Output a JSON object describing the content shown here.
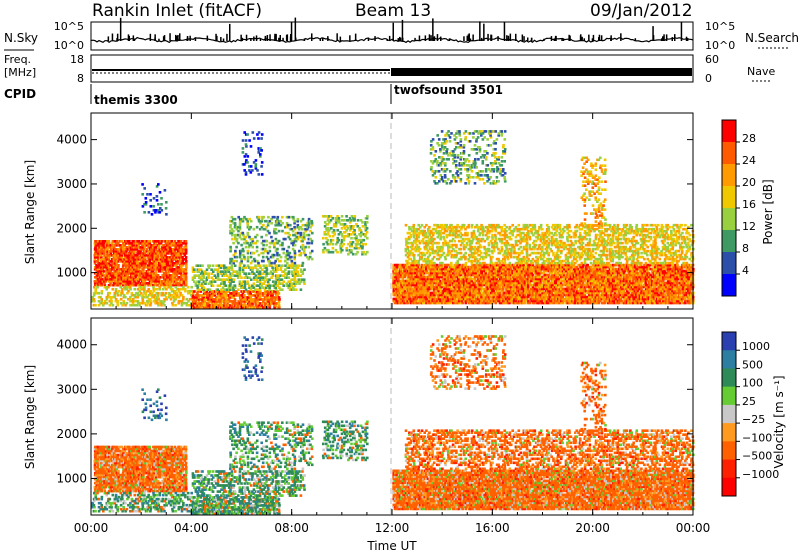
{
  "header": {
    "station": "Rankin Inlet (fitACF)",
    "beam": "Beam 13",
    "date": "09/Jan/2012"
  },
  "chart_data": [
    {
      "type": "line",
      "panel": "noise",
      "left_label": "N.Sky",
      "right_label": "N.Search",
      "yticks": [
        "10^5",
        "10^0"
      ],
      "yticks_right": [
        "10^5",
        "10^0"
      ]
    },
    {
      "type": "line",
      "panel": "frequency",
      "left_label_line1": "Freq.",
      "left_label_line2": "[MHz]",
      "right_label": "Nave",
      "yticks": [
        "18",
        "8"
      ],
      "yticks_right": [
        "60",
        "0"
      ]
    },
    {
      "type": "table",
      "panel": "cpid",
      "label": "CPID",
      "modes": [
        {
          "name": "themis 3300",
          "start_hour": 0,
          "end_hour": 12
        },
        {
          "name": "twofsound 3501",
          "start_hour": 12,
          "end_hour": 24
        }
      ]
    },
    {
      "type": "heatmap",
      "panel": "power",
      "ylabel": "Slant Range [km]",
      "yticks": [
        1000,
        2000,
        3000,
        4000
      ],
      "ylim": [
        180,
        4600
      ],
      "colorbar_label": "Power [dB]",
      "colorbar_ticks": [
        "28",
        "24",
        "20",
        "16",
        "12",
        "8",
        "4"
      ],
      "colors": [
        "#ff0000",
        "#ff5a00",
        "#ff9a00",
        "#f0c800",
        "#98d040",
        "#3e9a62",
        "#2c4faa",
        "#0000ff"
      ]
    },
    {
      "type": "heatmap",
      "panel": "velocity",
      "ylabel": "Slant Range [km]",
      "yticks": [
        1000,
        2000,
        3000,
        4000
      ],
      "ylim": [
        180,
        4600
      ],
      "colorbar_label": "Velocity [m s⁻¹]",
      "colorbar_ticks": [
        "1000",
        "500",
        "100",
        "25",
        "−25",
        "−100",
        "−500",
        "−1000"
      ],
      "colors": [
        "#2a3fb0",
        "#2c7fa0",
        "#2e8b57",
        "#66cc33",
        "#c8c8c8",
        "#ff9a20",
        "#ff6000",
        "#ff2000",
        "#ff0000"
      ]
    }
  ],
  "xaxis": {
    "label": "Time UT",
    "ticks": [
      "00:00",
      "04:00",
      "08:00",
      "12:00",
      "16:00",
      "20:00",
      "00:00"
    ]
  }
}
